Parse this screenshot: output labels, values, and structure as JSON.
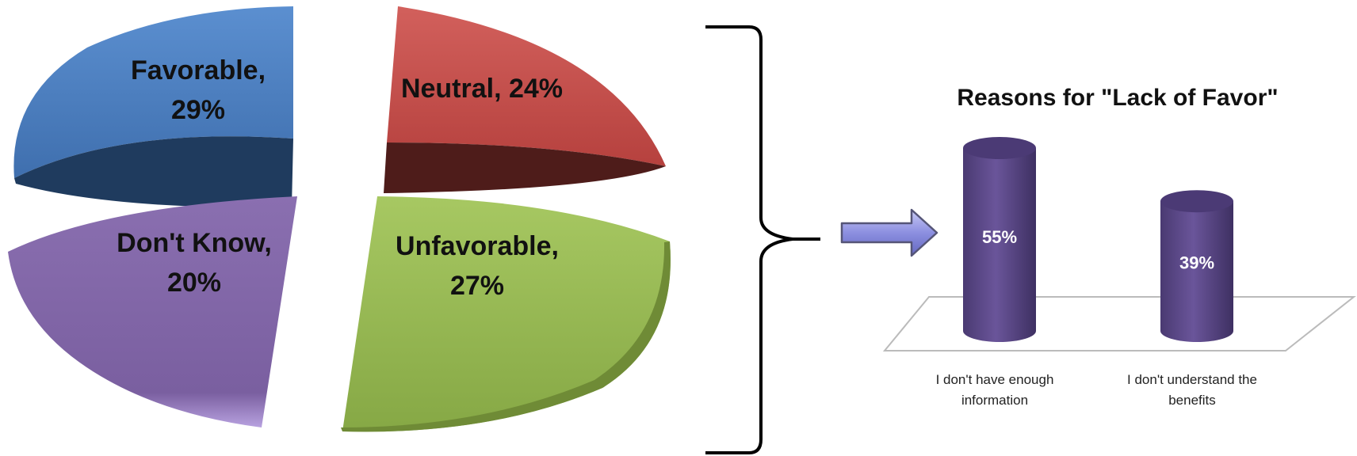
{
  "chart_data": [
    {
      "type": "pie",
      "title": "",
      "slices": [
        {
          "label": "Favorable",
          "value": 29,
          "color": "#4F81BD"
        },
        {
          "label": "Neutral",
          "value": 24,
          "color": "#C0504D"
        },
        {
          "label": "Unfavorable",
          "value": 27,
          "color": "#9BBB59"
        },
        {
          "label": "Don't Know",
          "value": 20,
          "color": "#8064A2"
        }
      ],
      "value_suffix": "%",
      "exploded": true,
      "style": "3d"
    },
    {
      "type": "bar",
      "style": "3d-cylinder",
      "title": "Reasons for \"Lack of Favor\"",
      "categories": [
        "I don't have enough information",
        "I don't understand the benefits"
      ],
      "category_lines": [
        [
          "I don't have enough",
          "information"
        ],
        [
          "I don't understand the",
          "benefits"
        ]
      ],
      "values": [
        55,
        39
      ],
      "value_labels": [
        "55%",
        "39%"
      ],
      "color": "#5F4A8B",
      "ylim": [
        0,
        60
      ],
      "grid": false,
      "legend": "none"
    }
  ],
  "annotations": {
    "bracket": "right-curly-brace",
    "arrow": "right-arrow"
  },
  "colors": {
    "arrow_fill": "#8C8FE0",
    "arrow_stroke": "#555577",
    "bracket": "#000000",
    "floor": "#BBBBBB"
  }
}
